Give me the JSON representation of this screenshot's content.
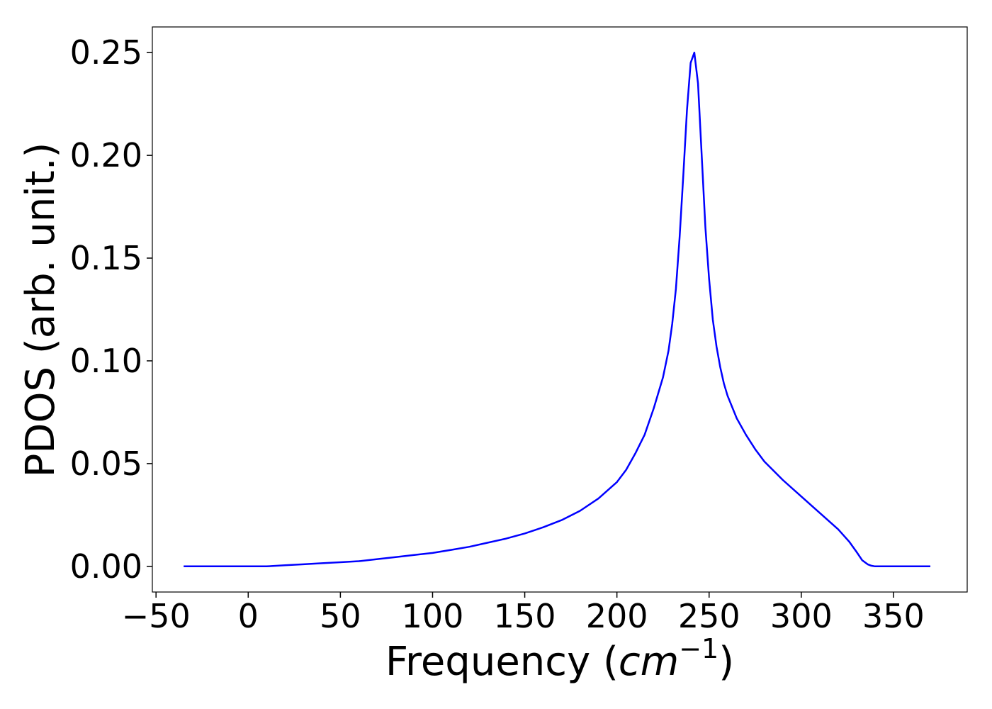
{
  "chart_data": {
    "type": "line",
    "title": "",
    "xlabel_main": "Frequency (",
    "xlabel_math": "cm",
    "xlabel_sup": "−1",
    "xlabel_close": ")",
    "ylabel": "PDOS (arb. unit.)",
    "xlim": [
      -52,
      390
    ],
    "ylim": [
      -0.0125,
      0.2625
    ],
    "xticks": [
      -50,
      0,
      50,
      100,
      150,
      200,
      250,
      300,
      350
    ],
    "xtick_labels": [
      "−50",
      "0",
      "50",
      "100",
      "150",
      "200",
      "250",
      "300",
      "350"
    ],
    "yticks": [
      0.0,
      0.05,
      0.1,
      0.15,
      0.2,
      0.25
    ],
    "ytick_labels": [
      "0.00",
      "0.05",
      "0.10",
      "0.15",
      "0.20",
      "0.25"
    ],
    "grid": false,
    "line_color": "#0000ff",
    "series": [
      {
        "x": [
          -35,
          -20,
          -10,
          0,
          10,
          20,
          30,
          40,
          50,
          60,
          70,
          80,
          90,
          100,
          110,
          120,
          130,
          140,
          150,
          160,
          170,
          180,
          190,
          200,
          205,
          210,
          215,
          220,
          225,
          228,
          230,
          232,
          234,
          236,
          238,
          240,
          242,
          244,
          246,
          248,
          250,
          252,
          254,
          256,
          258,
          260,
          265,
          270,
          275,
          280,
          290,
          300,
          310,
          320,
          326,
          330,
          333,
          336,
          338,
          340,
          345,
          350,
          360,
          370
        ],
        "y": [
          0.0,
          0.0,
          0.0,
          0.0,
          0.0,
          0.0005,
          0.001,
          0.0015,
          0.002,
          0.0025,
          0.0035,
          0.0045,
          0.0055,
          0.0065,
          0.008,
          0.0095,
          0.0115,
          0.0135,
          0.016,
          0.019,
          0.0225,
          0.027,
          0.033,
          0.041,
          0.047,
          0.055,
          0.064,
          0.077,
          0.092,
          0.105,
          0.118,
          0.135,
          0.16,
          0.19,
          0.222,
          0.245,
          0.25,
          0.235,
          0.2,
          0.165,
          0.14,
          0.12,
          0.107,
          0.097,
          0.089,
          0.083,
          0.072,
          0.064,
          0.057,
          0.051,
          0.042,
          0.034,
          0.026,
          0.018,
          0.012,
          0.007,
          0.003,
          0.001,
          0.0003,
          0.0,
          0.0,
          0.0,
          0.0,
          0.0
        ]
      }
    ]
  }
}
